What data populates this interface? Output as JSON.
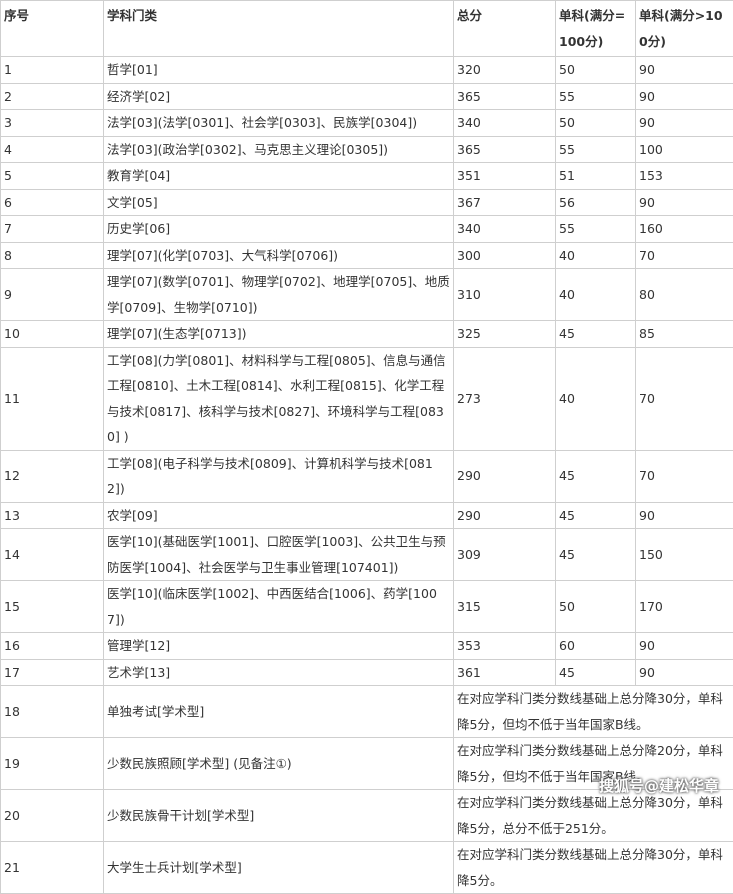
{
  "table": {
    "header": [
      "序号",
      "学科门类",
      "总分",
      "单科(满分=100分)",
      "单科(满分>100分)"
    ],
    "rows": [
      [
        "1",
        "哲学[01]",
        "320",
        "50",
        "90"
      ],
      [
        "2",
        "经济学[02]",
        "365",
        "55",
        "90"
      ],
      [
        "3",
        "法学[03](法学[0301]、社会学[0303]、民族学[0304])",
        "340",
        "50",
        "90"
      ],
      [
        "4",
        "法学[03](政治学[0302]、马克思主义理论[0305])",
        "365",
        "55",
        "100"
      ],
      [
        "5",
        "教育学[04]",
        "351",
        "51",
        "153"
      ],
      [
        "6",
        "文学[05]",
        "367",
        "56",
        "90"
      ],
      [
        "7",
        "历史学[06]",
        "340",
        "55",
        "160"
      ],
      [
        "8",
        "理学[07](化学[0703]、大气科学[0706])",
        "300",
        "40",
        "70"
      ],
      [
        "9",
        "理学[07](数学[0701]、物理学[0702]、地理学[0705]、地质学[0709]、生物学[0710])",
        "310",
        "40",
        "80"
      ],
      [
        "10",
        "理学[07](生态学[0713])",
        "325",
        "45",
        "85"
      ],
      [
        "11",
        "工学[08](力学[0801]、材料科学与工程[0805]、信息与通信工程[0810]、土木工程[0814]、水利工程[0815]、化学工程与技术[0817]、核科学与技术[0827]、环境科学与工程[0830] )",
        "273",
        "40",
        "70"
      ],
      [
        "12",
        "工学[08](电子科学与技术[0809]、计算机科学与技术[0812])",
        "290",
        "45",
        "70"
      ],
      [
        "13",
        "农学[09]",
        "290",
        "45",
        "90"
      ],
      [
        "14",
        "医学[10](基础医学[1001]、口腔医学[1003]、公共卫生与预防医学[1004]、社会医学与卫生事业管理[107401])",
        "309",
        "45",
        "150"
      ],
      [
        "15",
        "医学[10](临床医学[1002]、中西医结合[1006]、药学[1007])",
        "315",
        "50",
        "170"
      ],
      [
        "16",
        "管理学[12]",
        "353",
        "60",
        "90"
      ],
      [
        "17",
        "艺术学[13]",
        "361",
        "45",
        "90"
      ],
      [
        "18",
        "单独考试[学术型]",
        "在对应学科门类分数线基础上总分降30分，单科降5分，但均不低于当年国家B线。"
      ],
      [
        "19",
        "少数民族照顾[学术型] (见备注①)",
        "在对应学科门类分数线基础上总分降20分，单科降5分，但均不低于当年国家B线。"
      ],
      [
        "20",
        "少数民族骨干计划[学术型]",
        "在对应学科门类分数线基础上总分降30分，单科降5分，总分不低于251分。"
      ],
      [
        "21",
        "大学生士兵计划[学术型]",
        "在对应学科门类分数线基础上总分降30分，单科降5分。"
      ]
    ],
    "watermark": "搜狐号@建松华章"
  }
}
